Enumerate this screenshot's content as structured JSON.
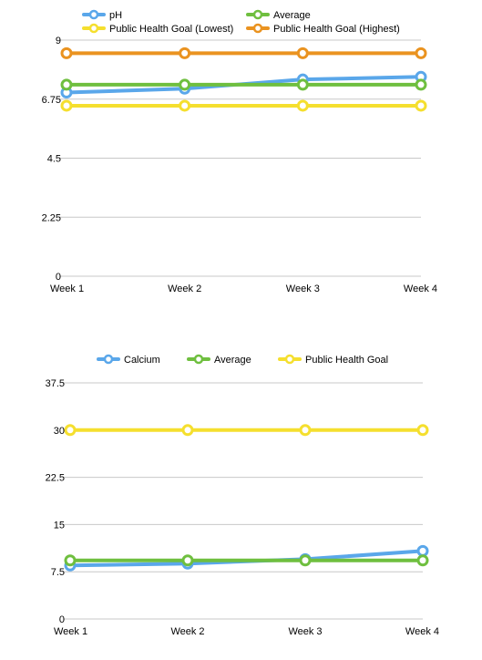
{
  "chart_data": [
    {
      "type": "line",
      "categories": [
        "Week 1",
        "Week 2",
        "Week 3",
        "Week 4"
      ],
      "ylim": [
        0,
        9
      ],
      "yticks": [
        "0",
        "2.25",
        "4.5",
        "6.75",
        "9"
      ],
      "grid": true,
      "legend_position": "top",
      "series": [
        {
          "name": "pH",
          "color": "#5aa7ea",
          "values": [
            7.0,
            7.15,
            7.5,
            7.6
          ]
        },
        {
          "name": "Average",
          "color": "#6fbf3f",
          "values": [
            7.3,
            7.3,
            7.3,
            7.3
          ]
        },
        {
          "name": "Public Health Goal (Lowest)",
          "color": "#f5df2e",
          "values": [
            6.5,
            6.5,
            6.5,
            6.5
          ]
        },
        {
          "name": "Public Health Goal (Highest)",
          "color": "#ea9320",
          "values": [
            8.5,
            8.5,
            8.5,
            8.5
          ]
        }
      ]
    },
    {
      "type": "line",
      "categories": [
        "Week 1",
        "Week 2",
        "Week 3",
        "Week 4"
      ],
      "ylim": [
        0,
        37.5
      ],
      "yticks": [
        "0",
        "7.5",
        "15",
        "22.5",
        "30",
        "37.5"
      ],
      "grid": true,
      "legend_position": "top",
      "series": [
        {
          "name": "Calcium",
          "color": "#5aa7ea",
          "values": [
            8.5,
            8.8,
            9.5,
            10.8
          ]
        },
        {
          "name": "Average",
          "color": "#6fbf3f",
          "values": [
            9.3,
            9.3,
            9.3,
            9.3
          ]
        },
        {
          "name": "Public Health Goal",
          "color": "#f5df2e",
          "values": [
            30,
            30,
            30,
            30
          ]
        }
      ]
    }
  ]
}
